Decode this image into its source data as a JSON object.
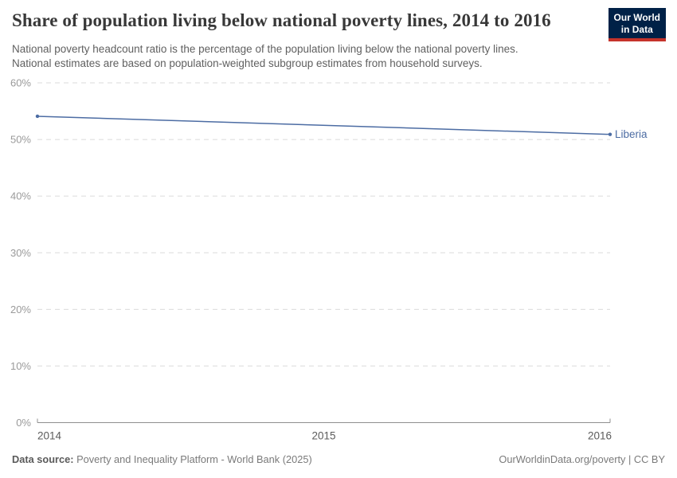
{
  "header": {
    "title": "Share of population living below national poverty lines, 2014 to 2016",
    "subtitle_line1": "National poverty headcount ratio is the percentage of the population living below the national poverty lines.",
    "subtitle_line2": "National estimates are based on population-weighted subgroup estimates from household surveys.",
    "logo": {
      "line1": "Our World",
      "line2": "in Data",
      "bg_color": "#002147",
      "bar_color": "#C5332B"
    }
  },
  "chart_data": {
    "type": "line",
    "title": "Share of population living below national poverty lines, 2014 to 2016",
    "series": [
      {
        "name": "Liberia",
        "color": "#4C6CA3",
        "x": [
          2014,
          2016
        ],
        "values": [
          54.1,
          50.9
        ]
      }
    ],
    "x_ticks": [
      2014,
      2015,
      2016
    ],
    "y_ticks": [
      0,
      10,
      20,
      30,
      40,
      50,
      60
    ],
    "xlim": [
      2014,
      2016
    ],
    "ylim": [
      0,
      60
    ],
    "unit": "%",
    "grid": "horizontal-dashed",
    "legend_position": "end-of-line-label",
    "colors": {
      "gridline": "#dbdbdb",
      "axis": "#8f8f8f",
      "y_tick_label": "#9a9a9a",
      "x_tick_label": "#5c5c5c"
    }
  },
  "footer": {
    "source_label": "Data source:",
    "source_text": " Poverty and Inequality Platform - World Bank (2025)",
    "right_text": "OurWorldinData.org/poverty | CC BY"
  }
}
